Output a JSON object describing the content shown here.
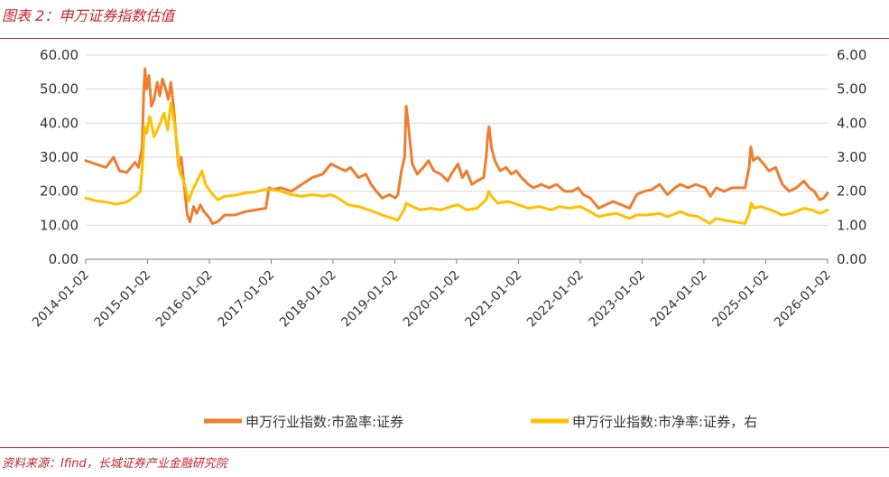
{
  "header": {
    "title": "图表 2：申万证券指数估值"
  },
  "footer": {
    "source": "资料来源：Ifind，长城证券产业金融研究院"
  },
  "chart_data": {
    "type": "line",
    "x_type": "date",
    "xlim": [
      "2014-01-02",
      "2026-01-02"
    ],
    "x_ticks": [
      "2014-01-02",
      "2015-01-02",
      "2016-01-02",
      "2017-01-02",
      "2018-01-02",
      "2019-01-02",
      "2020-01-02",
      "2021-01-02",
      "2022-01-02",
      "2023-01-02",
      "2024-01-02",
      "2025-01-02",
      "2026-01-02"
    ],
    "y_left": {
      "lim": [
        0,
        60
      ],
      "ticks": [
        "0.00",
        "10.00",
        "20.00",
        "30.00",
        "40.00",
        "50.00",
        "60.00"
      ]
    },
    "y_right": {
      "lim": [
        0,
        6
      ],
      "ticks": [
        "0.00",
        "1.00",
        "2.00",
        "3.00",
        "4.00",
        "5.00",
        "6.00"
      ]
    },
    "grid": "horizontal",
    "legend": "bottom",
    "series": [
      {
        "name": "申万行业指数:市盈率:证券",
        "axis": "left",
        "color": "#ed7d31",
        "points": [
          [
            "2014-01-02",
            29
          ],
          [
            "2014-03-01",
            28
          ],
          [
            "2014-05-01",
            27
          ],
          [
            "2014-06-15",
            30
          ],
          [
            "2014-07-20",
            26
          ],
          [
            "2014-09-01",
            25.5
          ],
          [
            "2014-10-20",
            28.5
          ],
          [
            "2014-11-10",
            27
          ],
          [
            "2014-12-01",
            33
          ],
          [
            "2014-12-10",
            48
          ],
          [
            "2014-12-18",
            56
          ],
          [
            "2014-12-28",
            50
          ],
          [
            "2015-01-10",
            54
          ],
          [
            "2015-01-25",
            45
          ],
          [
            "2015-02-10",
            47
          ],
          [
            "2015-03-01",
            52
          ],
          [
            "2015-03-15",
            48
          ],
          [
            "2015-04-01",
            53
          ],
          [
            "2015-04-20",
            50
          ],
          [
            "2015-05-05",
            47
          ],
          [
            "2015-05-20",
            52
          ],
          [
            "2015-06-05",
            45
          ],
          [
            "2015-06-20",
            36
          ],
          [
            "2015-07-05",
            27
          ],
          [
            "2015-07-20",
            30
          ],
          [
            "2015-08-10",
            20
          ],
          [
            "2015-08-25",
            13
          ],
          [
            "2015-09-10",
            11
          ],
          [
            "2015-10-01",
            15.5
          ],
          [
            "2015-10-20",
            13.5
          ],
          [
            "2015-11-10",
            16
          ],
          [
            "2015-12-01",
            14
          ],
          [
            "2016-01-05",
            12
          ],
          [
            "2016-01-20",
            10.5
          ],
          [
            "2016-02-20",
            11
          ],
          [
            "2016-04-01",
            13
          ],
          [
            "2016-06-01",
            13
          ],
          [
            "2016-08-01",
            14
          ],
          [
            "2016-10-01",
            14.5
          ],
          [
            "2016-12-01",
            15
          ],
          [
            "2016-12-20",
            21
          ],
          [
            "2017-01-10",
            20.5
          ],
          [
            "2017-03-01",
            21
          ],
          [
            "2017-05-01",
            20
          ],
          [
            "2017-07-01",
            22
          ],
          [
            "2017-09-01",
            24
          ],
          [
            "2017-11-01",
            25
          ],
          [
            "2017-12-20",
            28
          ],
          [
            "2018-02-01",
            27
          ],
          [
            "2018-03-15",
            26
          ],
          [
            "2018-04-15",
            27
          ],
          [
            "2018-06-01",
            24
          ],
          [
            "2018-07-15",
            25
          ],
          [
            "2018-08-15",
            22
          ],
          [
            "2018-09-15",
            20
          ],
          [
            "2018-10-20",
            18
          ],
          [
            "2018-12-01",
            19
          ],
          [
            "2019-01-05",
            18
          ],
          [
            "2019-01-20",
            19
          ],
          [
            "2019-02-10",
            26
          ],
          [
            "2019-03-01",
            30
          ],
          [
            "2019-03-10",
            45
          ],
          [
            "2019-03-20",
            41
          ],
          [
            "2019-04-15",
            28
          ],
          [
            "2019-05-15",
            25
          ],
          [
            "2019-06-20",
            27
          ],
          [
            "2019-07-20",
            29
          ],
          [
            "2019-08-20",
            26
          ],
          [
            "2019-10-01",
            25
          ],
          [
            "2019-11-10",
            23
          ],
          [
            "2019-12-01",
            25
          ],
          [
            "2020-01-10",
            28
          ],
          [
            "2020-02-05",
            24
          ],
          [
            "2020-03-01",
            26
          ],
          [
            "2020-04-01",
            22
          ],
          [
            "2020-05-01",
            23
          ],
          [
            "2020-06-10",
            24
          ],
          [
            "2020-06-25",
            30
          ],
          [
            "2020-07-05",
            37
          ],
          [
            "2020-07-12",
            39
          ],
          [
            "2020-07-25",
            33
          ],
          [
            "2020-08-15",
            29
          ],
          [
            "2020-09-15",
            26
          ],
          [
            "2020-10-20",
            27
          ],
          [
            "2020-11-20",
            25
          ],
          [
            "2020-12-20",
            26
          ],
          [
            "2021-01-20",
            24
          ],
          [
            "2021-03-01",
            22
          ],
          [
            "2021-04-01",
            21
          ],
          [
            "2021-05-15",
            22
          ],
          [
            "2021-07-01",
            21
          ],
          [
            "2021-08-15",
            22
          ],
          [
            "2021-10-01",
            20
          ],
          [
            "2021-11-15",
            20
          ],
          [
            "2021-12-20",
            21
          ],
          [
            "2022-01-20",
            19
          ],
          [
            "2022-03-01",
            18
          ],
          [
            "2022-04-20",
            15
          ],
          [
            "2022-06-01",
            16
          ],
          [
            "2022-07-15",
            17
          ],
          [
            "2022-09-01",
            16
          ],
          [
            "2022-10-20",
            15
          ],
          [
            "2022-12-01",
            19
          ],
          [
            "2023-01-15",
            20
          ],
          [
            "2023-03-01",
            20.5
          ],
          [
            "2023-04-15",
            22
          ],
          [
            "2023-06-01",
            19
          ],
          [
            "2023-07-15",
            21
          ],
          [
            "2023-08-15",
            22
          ],
          [
            "2023-10-01",
            21
          ],
          [
            "2023-11-15",
            22
          ],
          [
            "2024-01-10",
            21
          ],
          [
            "2024-02-10",
            18.5
          ],
          [
            "2024-03-15",
            21
          ],
          [
            "2024-05-01",
            20
          ],
          [
            "2024-06-15",
            21
          ],
          [
            "2024-08-01",
            21
          ],
          [
            "2024-09-01",
            21
          ],
          [
            "2024-09-25",
            27
          ],
          [
            "2024-10-05",
            33
          ],
          [
            "2024-10-20",
            29
          ],
          [
            "2024-11-15",
            30
          ],
          [
            "2024-12-20",
            28
          ],
          [
            "2025-01-20",
            26
          ],
          [
            "2025-03-01",
            27
          ],
          [
            "2025-04-10",
            22
          ],
          [
            "2025-05-20",
            20
          ],
          [
            "2025-07-01",
            21
          ],
          [
            "2025-08-15",
            23
          ],
          [
            "2025-09-15",
            21
          ],
          [
            "2025-10-15",
            20
          ],
          [
            "2025-11-15",
            17.5
          ],
          [
            "2025-12-10",
            18
          ],
          [
            "2026-01-02",
            19.5
          ]
        ]
      },
      {
        "name": "申万行业指数:市净率:证券，右",
        "axis": "right",
        "color": "#ffc000",
        "points": [
          [
            "2014-01-02",
            1.8
          ],
          [
            "2014-03-01",
            1.72
          ],
          [
            "2014-05-01",
            1.68
          ],
          [
            "2014-07-01",
            1.62
          ],
          [
            "2014-09-01",
            1.68
          ],
          [
            "2014-10-20",
            1.85
          ],
          [
            "2014-11-20",
            2.0
          ],
          [
            "2014-12-05",
            2.9
          ],
          [
            "2014-12-15",
            3.9
          ],
          [
            "2014-12-28",
            3.7
          ],
          [
            "2015-01-15",
            4.2
          ],
          [
            "2015-02-10",
            3.6
          ],
          [
            "2015-03-10",
            3.9
          ],
          [
            "2015-04-10",
            4.3
          ],
          [
            "2015-05-01",
            3.8
          ],
          [
            "2015-05-20",
            4.6
          ],
          [
            "2015-06-10",
            4.0
          ],
          [
            "2015-06-25",
            3.4
          ],
          [
            "2015-07-10",
            2.6
          ],
          [
            "2015-08-10",
            2.2
          ],
          [
            "2015-09-01",
            1.7
          ],
          [
            "2015-10-01",
            2.1
          ],
          [
            "2015-11-01",
            2.4
          ],
          [
            "2015-11-20",
            2.6
          ],
          [
            "2015-12-10",
            2.2
          ],
          [
            "2016-01-15",
            1.95
          ],
          [
            "2016-02-20",
            1.75
          ],
          [
            "2016-04-01",
            1.85
          ],
          [
            "2016-06-01",
            1.88
          ],
          [
            "2016-08-01",
            1.95
          ],
          [
            "2016-10-01",
            1.98
          ],
          [
            "2016-11-20",
            2.05
          ],
          [
            "2017-01-01",
            2.05
          ],
          [
            "2017-03-01",
            2.0
          ],
          [
            "2017-05-01",
            1.9
          ],
          [
            "2017-07-01",
            1.85
          ],
          [
            "2017-09-01",
            1.9
          ],
          [
            "2017-11-01",
            1.85
          ],
          [
            "2017-12-20",
            1.9
          ],
          [
            "2018-02-01",
            1.8
          ],
          [
            "2018-04-01",
            1.6
          ],
          [
            "2018-06-01",
            1.55
          ],
          [
            "2018-08-01",
            1.45
          ],
          [
            "2018-10-20",
            1.3
          ],
          [
            "2018-12-20",
            1.2
          ],
          [
            "2019-01-20",
            1.15
          ],
          [
            "2019-02-25",
            1.45
          ],
          [
            "2019-03-10",
            1.65
          ],
          [
            "2019-04-15",
            1.55
          ],
          [
            "2019-06-01",
            1.45
          ],
          [
            "2019-08-01",
            1.5
          ],
          [
            "2019-10-01",
            1.45
          ],
          [
            "2019-12-01",
            1.55
          ],
          [
            "2020-01-10",
            1.6
          ],
          [
            "2020-03-01",
            1.45
          ],
          [
            "2020-05-01",
            1.5
          ],
          [
            "2020-06-25",
            1.75
          ],
          [
            "2020-07-10",
            2.0
          ],
          [
            "2020-07-25",
            1.85
          ],
          [
            "2020-09-01",
            1.65
          ],
          [
            "2020-11-01",
            1.7
          ],
          [
            "2021-01-01",
            1.6
          ],
          [
            "2021-03-01",
            1.5
          ],
          [
            "2021-05-01",
            1.55
          ],
          [
            "2021-07-15",
            1.45
          ],
          [
            "2021-09-01",
            1.55
          ],
          [
            "2021-11-01",
            1.5
          ],
          [
            "2022-01-01",
            1.55
          ],
          [
            "2022-03-01",
            1.4
          ],
          [
            "2022-04-20",
            1.25
          ],
          [
            "2022-06-01",
            1.3
          ],
          [
            "2022-08-01",
            1.35
          ],
          [
            "2022-10-20",
            1.2
          ],
          [
            "2022-12-01",
            1.3
          ],
          [
            "2023-02-01",
            1.3
          ],
          [
            "2023-04-15",
            1.35
          ],
          [
            "2023-06-01",
            1.25
          ],
          [
            "2023-08-15",
            1.4
          ],
          [
            "2023-10-01",
            1.3
          ],
          [
            "2023-12-01",
            1.25
          ],
          [
            "2024-02-05",
            1.05
          ],
          [
            "2024-03-15",
            1.2
          ],
          [
            "2024-05-01",
            1.15
          ],
          [
            "2024-07-01",
            1.1
          ],
          [
            "2024-09-01",
            1.05
          ],
          [
            "2024-09-25",
            1.35
          ],
          [
            "2024-10-08",
            1.65
          ],
          [
            "2024-10-25",
            1.5
          ],
          [
            "2024-12-01",
            1.55
          ],
          [
            "2025-02-01",
            1.45
          ],
          [
            "2025-04-10",
            1.3
          ],
          [
            "2025-06-01",
            1.35
          ],
          [
            "2025-08-15",
            1.5
          ],
          [
            "2025-10-01",
            1.45
          ],
          [
            "2025-11-20",
            1.35
          ],
          [
            "2026-01-02",
            1.45
          ]
        ]
      }
    ]
  }
}
